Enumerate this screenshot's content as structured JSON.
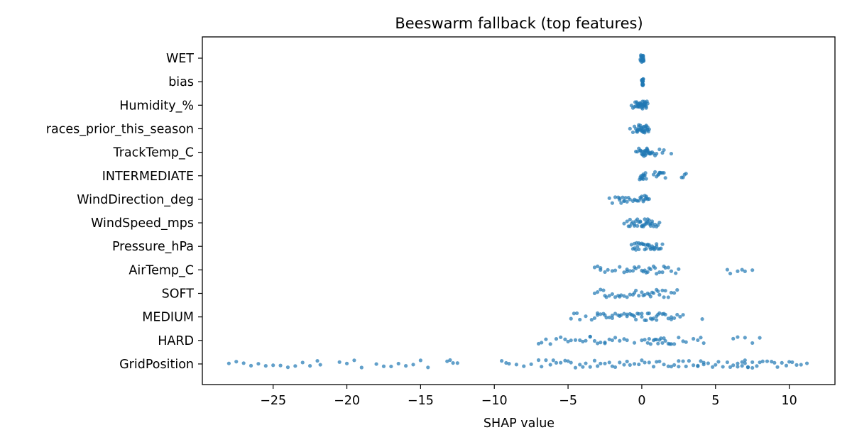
{
  "chart_data": {
    "type": "scatter",
    "subtype": "beeswarm",
    "title": "Beeswarm fallback (top features)",
    "xlabel": "SHAP value",
    "ylabel": "",
    "xlim": [
      -29.8,
      13.1
    ],
    "xticks": [
      -25,
      -20,
      -15,
      -10,
      -5,
      0,
      5,
      10
    ],
    "xtick_labels": [
      "−25",
      "−20",
      "−15",
      "−10",
      "−5",
      "0",
      "5",
      "10"
    ],
    "grid": false,
    "legend": "none",
    "point_color": "#1f77b4",
    "point_opacity": 0.7,
    "features": [
      {
        "name": "WET",
        "points": [
          -0.1,
          -0.05,
          0.0,
          0.0,
          0.02,
          0.05,
          0.08,
          0.1,
          0.12,
          -0.08,
          0.03,
          0.06,
          -0.02,
          0.09,
          0.11,
          0.01,
          -0.04,
          0.07,
          0.04,
          0.13,
          -0.06,
          0.0,
          0.05,
          0.1
        ]
      },
      {
        "name": "bias",
        "points": [
          0.0,
          0.02,
          0.04,
          0.05,
          0.06,
          0.07,
          0.08,
          0.09,
          0.1,
          0.01,
          0.03,
          0.05,
          0.07,
          0.08,
          0.04,
          0.06,
          0.02,
          0.09,
          0.05,
          0.06
        ]
      },
      {
        "name": "Humidity_%",
        "points": [
          -0.7,
          -0.6,
          -0.5,
          -0.45,
          -0.4,
          -0.35,
          -0.3,
          -0.25,
          -0.2,
          -0.15,
          -0.1,
          -0.05,
          0.0,
          0.05,
          0.1,
          0.15,
          0.2,
          0.25,
          0.3,
          0.35,
          0.4,
          -0.3,
          -0.2,
          -0.1,
          0.0,
          0.1,
          0.2,
          0.3,
          -0.25,
          -0.15,
          0.05,
          0.15,
          0.25,
          -0.05,
          0.08,
          0.18
        ]
      },
      {
        "name": "races_prior_this_season",
        "points": [
          -0.8,
          -0.6,
          -0.5,
          -0.4,
          -0.3,
          -0.25,
          -0.2,
          -0.15,
          -0.1,
          -0.05,
          0.0,
          0.05,
          0.1,
          0.15,
          0.2,
          0.25,
          0.3,
          0.35,
          0.4,
          0.45,
          0.5,
          -0.3,
          -0.1,
          0.1,
          0.3,
          -0.2,
          0.0,
          0.2,
          0.4,
          -0.35,
          0.15,
          0.05
        ]
      },
      {
        "name": "TrackTemp_C",
        "points": [
          -0.4,
          -0.3,
          -0.2,
          -0.1,
          0.0,
          0.05,
          0.1,
          0.15,
          0.2,
          0.25,
          0.3,
          0.35,
          0.4,
          0.45,
          0.5,
          0.55,
          0.6,
          0.7,
          0.8,
          0.9,
          1.0,
          1.2,
          1.4,
          1.5,
          2.0,
          0.1,
          0.2,
          0.3,
          0.4,
          0.0,
          -0.1,
          0.25,
          0.35,
          0.6
        ]
      },
      {
        "name": "INTERMEDIATE",
        "points": [
          -0.15,
          -0.1,
          -0.05,
          0.0,
          0.05,
          0.1,
          0.15,
          0.2,
          0.25,
          0.3,
          0.8,
          0.9,
          1.0,
          1.1,
          1.2,
          1.3,
          1.4,
          1.5,
          1.6,
          2.7,
          2.8,
          2.9,
          3.0,
          0.05,
          0.1,
          1.15,
          1.25,
          -0.05
        ]
      },
      {
        "name": "WindDirection_deg",
        "points": [
          -2.2,
          -2.0,
          -1.8,
          -1.6,
          -1.5,
          -1.4,
          -1.3,
          -1.2,
          -1.1,
          -1.0,
          -0.9,
          -0.8,
          -0.6,
          -0.5,
          -0.3,
          -0.2,
          -0.1,
          0.0,
          0.1,
          0.2,
          0.3,
          0.4,
          0.5,
          -1.5,
          -1.2,
          -0.4,
          0.15,
          0.35,
          -0.05,
          0.25
        ]
      },
      {
        "name": "WindSpeed_mps",
        "points": [
          -1.2,
          -1.0,
          -0.9,
          -0.8,
          -0.7,
          -0.6,
          -0.5,
          -0.4,
          -0.3,
          -0.2,
          -0.1,
          0.0,
          0.1,
          0.2,
          0.3,
          0.4,
          0.5,
          0.6,
          0.7,
          0.8,
          0.9,
          1.0,
          1.1,
          1.2,
          -0.5,
          -0.3,
          -0.1,
          0.1,
          0.3,
          0.5,
          0.7,
          -0.8,
          0.0,
          0.2,
          0.4,
          0.6
        ]
      },
      {
        "name": "Pressure_hPa",
        "points": [
          -0.7,
          -0.6,
          -0.5,
          -0.4,
          -0.3,
          -0.2,
          -0.1,
          0.0,
          0.1,
          0.2,
          0.3,
          0.4,
          0.5,
          0.6,
          0.7,
          0.8,
          0.9,
          1.0,
          1.1,
          1.2,
          1.3,
          1.4,
          -0.5,
          -0.2,
          0.1,
          0.4,
          0.7,
          1.0,
          -0.35,
          0.25,
          0.55,
          0.85
        ]
      },
      {
        "name": "AirTemp_C",
        "points": [
          -3.2,
          -3.0,
          -2.8,
          -2.5,
          -2.3,
          -2.0,
          -1.8,
          -1.5,
          -1.2,
          -1.0,
          -0.8,
          -0.6,
          -0.4,
          -0.2,
          0.0,
          0.2,
          0.4,
          0.6,
          0.8,
          1.0,
          1.2,
          1.4,
          1.6,
          1.8,
          2.0,
          2.3,
          2.5,
          5.8,
          6.0,
          6.5,
          6.8,
          7.0,
          7.5,
          -2.8,
          -1.0,
          0.1,
          0.5,
          0.9,
          1.5,
          -0.5,
          0.3
        ]
      },
      {
        "name": "SOFT",
        "points": [
          -3.2,
          -3.0,
          -2.8,
          -2.6,
          -2.4,
          -2.2,
          -2.0,
          -1.8,
          -1.6,
          -1.4,
          -1.2,
          -1.0,
          -0.8,
          -0.6,
          -0.4,
          -0.2,
          0.0,
          0.2,
          0.4,
          0.6,
          0.8,
          1.0,
          1.2,
          1.4,
          1.6,
          1.8,
          2.0,
          2.2,
          2.4,
          -1.5,
          -0.5,
          0.5,
          1.5,
          -2.5,
          0.1,
          0.7,
          1.1
        ]
      },
      {
        "name": "MEDIUM",
        "points": [
          -4.8,
          -4.6,
          -4.4,
          -4.2,
          -3.8,
          -3.4,
          -3.2,
          -3.0,
          -2.8,
          -2.6,
          -2.4,
          -2.2,
          -2.0,
          -1.8,
          -1.6,
          -1.4,
          -1.2,
          -1.0,
          -0.8,
          -0.6,
          -0.4,
          -0.2,
          0.0,
          0.2,
          0.4,
          0.6,
          0.8,
          1.0,
          1.2,
          1.4,
          1.6,
          1.8,
          2.0,
          2.2,
          2.4,
          2.6,
          2.8,
          4.1,
          -3.0,
          -2.5,
          -2.0,
          -1.5,
          -1.0,
          -0.5,
          0.0,
          0.5,
          1.0,
          1.5,
          2.0,
          0.3,
          0.7,
          1.1,
          -0.3,
          -0.7
        ]
      },
      {
        "name": "HARD",
        "points": [
          -7.0,
          -6.8,
          -6.5,
          -6.2,
          -5.8,
          -5.5,
          -5.2,
          -5.0,
          -4.8,
          -4.5,
          -4.2,
          -4.0,
          -3.8,
          -3.5,
          -3.2,
          -3.0,
          -2.8,
          -2.5,
          -2.2,
          -2.0,
          -1.8,
          -1.5,
          -1.2,
          -1.0,
          -0.5,
          0.0,
          0.2,
          0.4,
          0.6,
          0.8,
          1.0,
          1.2,
          1.4,
          1.6,
          1.8,
          2.0,
          2.2,
          2.5,
          2.8,
          3.0,
          3.5,
          3.8,
          4.0,
          4.2,
          6.2,
          6.5,
          7.0,
          7.5,
          8.0,
          -3.5,
          -2.5,
          0.5,
          1.1,
          1.5,
          1.9,
          0.9,
          1.3
        ]
      },
      {
        "name": "GridPosition",
        "points": [
          -28.0,
          -27.5,
          -27.0,
          -26.5,
          -26.0,
          -25.5,
          -25.0,
          -24.5,
          -24.0,
          -23.5,
          -23.0,
          -22.5,
          -22.0,
          -21.8,
          -20.5,
          -20.0,
          -19.5,
          -19.0,
          -18.0,
          -17.5,
          -17.0,
          -16.5,
          -16.0,
          -15.5,
          -15.0,
          -14.5,
          -13.2,
          -13.0,
          -12.8,
          -12.5,
          -9.5,
          -9.2,
          -9.0,
          -8.5,
          -8.0,
          -7.5,
          -7.0,
          -6.8,
          -6.5,
          -6.2,
          -6.0,
          -5.8,
          -5.5,
          -5.2,
          -5.0,
          -4.8,
          -4.5,
          -4.2,
          -4.0,
          -3.8,
          -3.5,
          -3.2,
          -3.0,
          -2.8,
          -2.5,
          -2.2,
          -2.0,
          -1.8,
          -1.5,
          -1.2,
          -1.0,
          -0.8,
          -0.5,
          -0.2,
          0.0,
          0.2,
          0.5,
          0.8,
          1.0,
          1.2,
          1.5,
          1.8,
          2.0,
          2.2,
          2.5,
          2.8,
          3.0,
          3.2,
          3.5,
          3.8,
          4.0,
          4.2,
          4.5,
          4.8,
          5.0,
          5.2,
          5.5,
          5.8,
          6.0,
          6.2,
          6.5,
          6.8,
          7.0,
          7.2,
          7.5,
          7.8,
          8.0,
          8.2,
          8.5,
          8.8,
          9.0,
          9.2,
          9.5,
          9.8,
          10.0,
          10.2,
          10.5,
          10.8,
          11.2,
          6.5,
          7.0,
          7.5,
          6.8,
          7.2,
          3.8,
          4.2,
          2.5
        ]
      }
    ]
  }
}
